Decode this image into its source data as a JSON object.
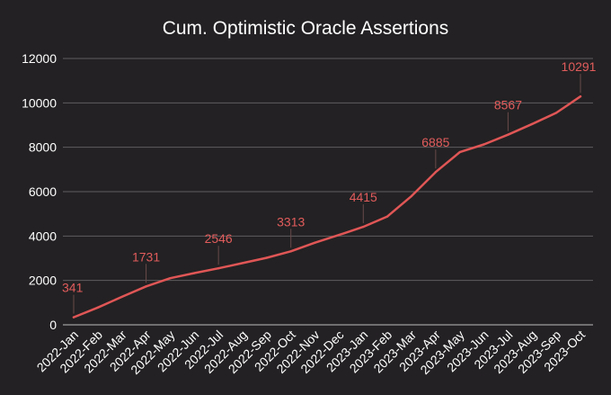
{
  "chart_data": {
    "type": "line",
    "title": "Cum. Optimistic Oracle Assertions",
    "xlabel": "",
    "ylabel": "",
    "categories": [
      "2022-Jan",
      "2022-Feb",
      "2022-Mar",
      "2022-Apr",
      "2022-May",
      "2022-Jun",
      "2022-Jul",
      "2022-Aug",
      "2022-Sep",
      "2022-Oct",
      "2022-Nov",
      "2022-Dec",
      "2023-Jan",
      "2023-Feb",
      "2023-Mar",
      "2023-Apr",
      "2023-May",
      "2023-Jun",
      "2023-Jul",
      "2023-Aug",
      "2023-Sep",
      "2023-Oct"
    ],
    "series": [
      {
        "values": [
          341,
          780,
          1260,
          1731,
          2100,
          2330,
          2546,
          2780,
          3020,
          3313,
          3700,
          4050,
          4415,
          4880,
          5800,
          6885,
          7780,
          8130,
          8567,
          9050,
          9550,
          10291
        ]
      }
    ],
    "data_labels": [
      {
        "index": 0,
        "text": "341"
      },
      {
        "index": 3,
        "text": "1731"
      },
      {
        "index": 6,
        "text": "2546"
      },
      {
        "index": 9,
        "text": "3313"
      },
      {
        "index": 12,
        "text": "4415"
      },
      {
        "index": 15,
        "text": "6885"
      },
      {
        "index": 18,
        "text": "8567"
      },
      {
        "index": 21,
        "text": "10291"
      }
    ],
    "ylim": [
      0,
      12000
    ],
    "yticks": [
      "0",
      "2000",
      "4000",
      "6000",
      "8000",
      "10000",
      "12000"
    ],
    "grid": true,
    "legend": "none",
    "colors": {
      "background": "#232123",
      "line": "#e05656",
      "label": "#e25c5c",
      "text": "#ffffff",
      "grid": "#5f5d5f"
    }
  }
}
